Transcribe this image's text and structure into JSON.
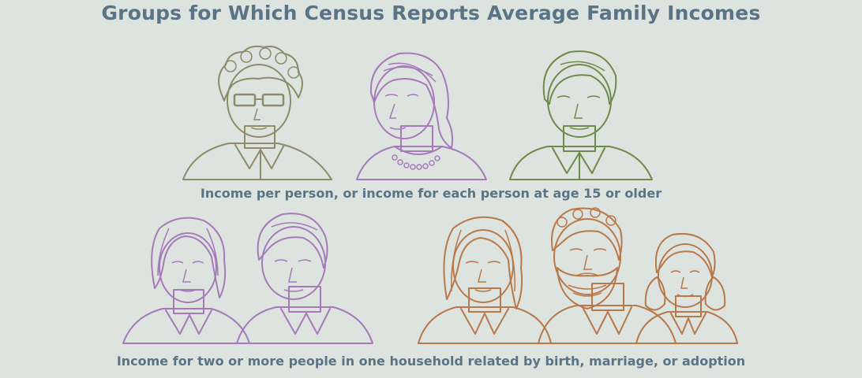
{
  "title": "Groups for Which Census Reports Average Family Incomes",
  "groups": [
    {
      "caption": "Income per person, or income for each person at age 15 or older",
      "people": [
        "pink-man-with-glasses",
        "blue-woman-with-necklace",
        "yellow-man"
      ]
    },
    {
      "caption": "Income for two or more people in one household related by birth, marriage, or adoption",
      "people": [
        "green-woman",
        "green-man",
        "orange-woman",
        "orange-bearded-man",
        "orange-girl"
      ]
    }
  ],
  "colors": {
    "background": "#dde4df",
    "text": "#5a7385",
    "pink": "#e8b4b4",
    "blue": "#a9c4e6",
    "yellow": "#f2d27a",
    "green": "#b4d46a",
    "orange": "#f2b080",
    "outline_purple": "#a67ab8",
    "outline_green": "#6c8a4a",
    "outline_orange": "#b8784a"
  }
}
